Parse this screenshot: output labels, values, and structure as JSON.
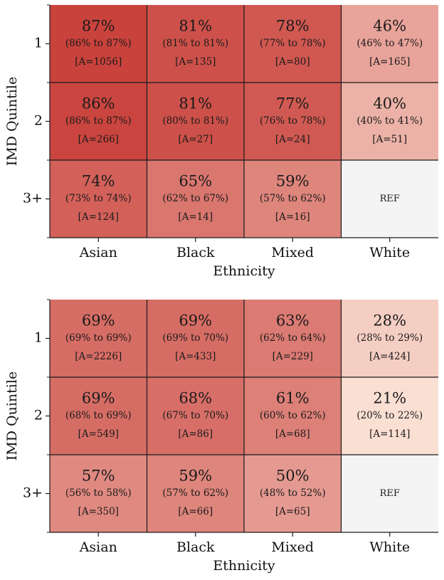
{
  "colors": {
    "cell_high": "#c8403a",
    "cell_low": "#fbe1d5",
    "ref_cell": "#f4f4f4",
    "grid_line": "#1a1a1a"
  },
  "chart_data": [
    {
      "type": "heatmap",
      "xlabel": "Ethnicity",
      "ylabel": "IMD Quintile",
      "x_categories": [
        "Asian",
        "Black",
        "Mixed",
        "White"
      ],
      "y_categories": [
        "1",
        "2",
        "3+"
      ],
      "ref_label": "REF",
      "rows": [
        [
          {
            "pct": "87%",
            "ci": "(86% to 87%)",
            "n": "[A=1056]",
            "value": 87
          },
          {
            "pct": "81%",
            "ci": "(81% to 81%)",
            "n": "[A=135]",
            "value": 81
          },
          {
            "pct": "78%",
            "ci": "(77% to 78%)",
            "n": "[A=80]",
            "value": 78
          },
          {
            "pct": "46%",
            "ci": "(46% to 47%)",
            "n": "[A=165]",
            "value": 46
          }
        ],
        [
          {
            "pct": "86%",
            "ci": "(86% to 87%)",
            "n": "[A=266]",
            "value": 86
          },
          {
            "pct": "81%",
            "ci": "(80% to 81%)",
            "n": "[A=27]",
            "value": 81
          },
          {
            "pct": "77%",
            "ci": "(76% to 78%)",
            "n": "[A=24]",
            "value": 77
          },
          {
            "pct": "40%",
            "ci": "(40% to 41%)",
            "n": "[A=51]",
            "value": 40
          }
        ],
        [
          {
            "pct": "74%",
            "ci": "(73% to 74%)",
            "n": "[A=124]",
            "value": 74
          },
          {
            "pct": "65%",
            "ci": "(62% to 67%)",
            "n": "[A=14]",
            "value": 65
          },
          {
            "pct": "59%",
            "ci": "(57% to 62%)",
            "n": "[A=16]",
            "value": 59
          },
          {
            "ref": true
          }
        ]
      ]
    },
    {
      "type": "heatmap",
      "xlabel": "Ethnicity",
      "ylabel": "IMD Quintile",
      "x_categories": [
        "Asian",
        "Black",
        "Mixed",
        "White"
      ],
      "y_categories": [
        "1",
        "2",
        "3+"
      ],
      "ref_label": "REF",
      "rows": [
        [
          {
            "pct": "69%",
            "ci": "(69% to 69%)",
            "n": "[A=2226]",
            "value": 69
          },
          {
            "pct": "69%",
            "ci": "(69% to 70%)",
            "n": "[A=433]",
            "value": 69
          },
          {
            "pct": "63%",
            "ci": "(62% to 64%)",
            "n": "[A=229]",
            "value": 63
          },
          {
            "pct": "28%",
            "ci": "(28% to 29%)",
            "n": "[A=424]",
            "value": 28
          }
        ],
        [
          {
            "pct": "69%",
            "ci": "(68% to 69%)",
            "n": "[A=549]",
            "value": 69
          },
          {
            "pct": "68%",
            "ci": "(67% to 70%)",
            "n": "[A=86]",
            "value": 68
          },
          {
            "pct": "61%",
            "ci": "(60% to 62%)",
            "n": "[A=68]",
            "value": 61
          },
          {
            "pct": "21%",
            "ci": "(20% to 22%)",
            "n": "[A=114]",
            "value": 21
          }
        ],
        [
          {
            "pct": "57%",
            "ci": "(56% to 58%)",
            "n": "[A=350]",
            "value": 57
          },
          {
            "pct": "59%",
            "ci": "(57% to 62%)",
            "n": "[A=66]",
            "value": 59
          },
          {
            "pct": "50%",
            "ci": "(48% to 52%)",
            "n": "[A=65]",
            "value": 50
          },
          {
            "ref": true
          }
        ]
      ]
    }
  ]
}
